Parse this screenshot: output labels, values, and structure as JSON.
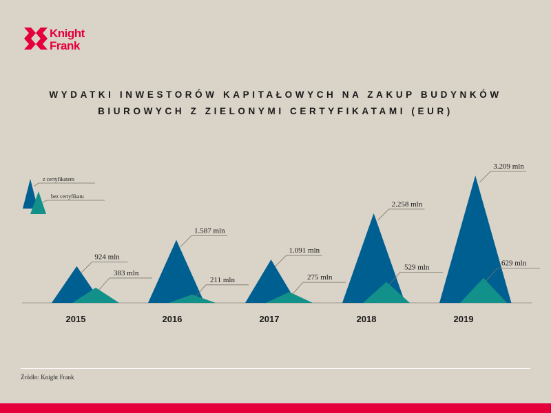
{
  "brand": {
    "line1": "Knight",
    "line2": "Frank",
    "color": "#e4003b"
  },
  "title": {
    "line1": "WYDATKI INWESTORÓW KAPITAŁOWYCH NA ZAKUP BUDYNKÓW",
    "line2": "BIUROWYCH Z ZIELONYMI CERTYFIKATAMI  (EUR)"
  },
  "source": "Źródło: Knight Frank",
  "colors": {
    "certified": "#005f91",
    "uncertified": "#12918a",
    "baseline": "#a09a90",
    "leader": "#7a756c"
  },
  "chart_data": {
    "type": "area",
    "title": "WYDATKI INWESTORÓW KAPITAŁOWYCH NA ZAKUP BUDYNKÓW BIUROWYCH Z ZIELONYMI CERTYFIKATAMI  (EUR)",
    "categories": [
      "2015",
      "2016",
      "2017",
      "2018",
      "2019"
    ],
    "ylim": [
      0,
      3300
    ],
    "legend": "top-left",
    "series": [
      {
        "name": "z certyfikatem",
        "values": [
          924,
          1587,
          1091,
          2258,
          3209
        ],
        "labels": [
          "924 mln",
          "1.587 mln",
          "1.091 mln",
          "2.258 mln",
          "3.209 mln"
        ]
      },
      {
        "name": "bez certyfikatu",
        "values": [
          383,
          211,
          275,
          529,
          629
        ],
        "labels": [
          "383 mln",
          "211 mln",
          "275 mln",
          "529 mln",
          "629 mln"
        ]
      }
    ]
  }
}
